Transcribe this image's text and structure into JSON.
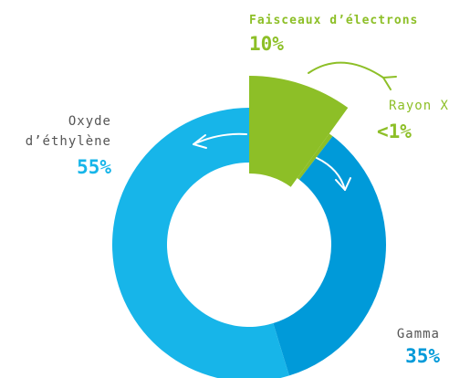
{
  "chart_data": {
    "type": "pie",
    "categories": [
      "Faisceaux d’électrons",
      "Rayon X",
      "Gamma",
      "Oxyde d’éthylène"
    ],
    "values": [
      10,
      0.5,
      35,
      55
    ],
    "value_labels": [
      "10%",
      "<1%",
      "35%",
      "55%"
    ],
    "colors": [
      "#8dbf27",
      "#8dbf27",
      "#009ad9",
      "#17b5e9"
    ]
  }
}
